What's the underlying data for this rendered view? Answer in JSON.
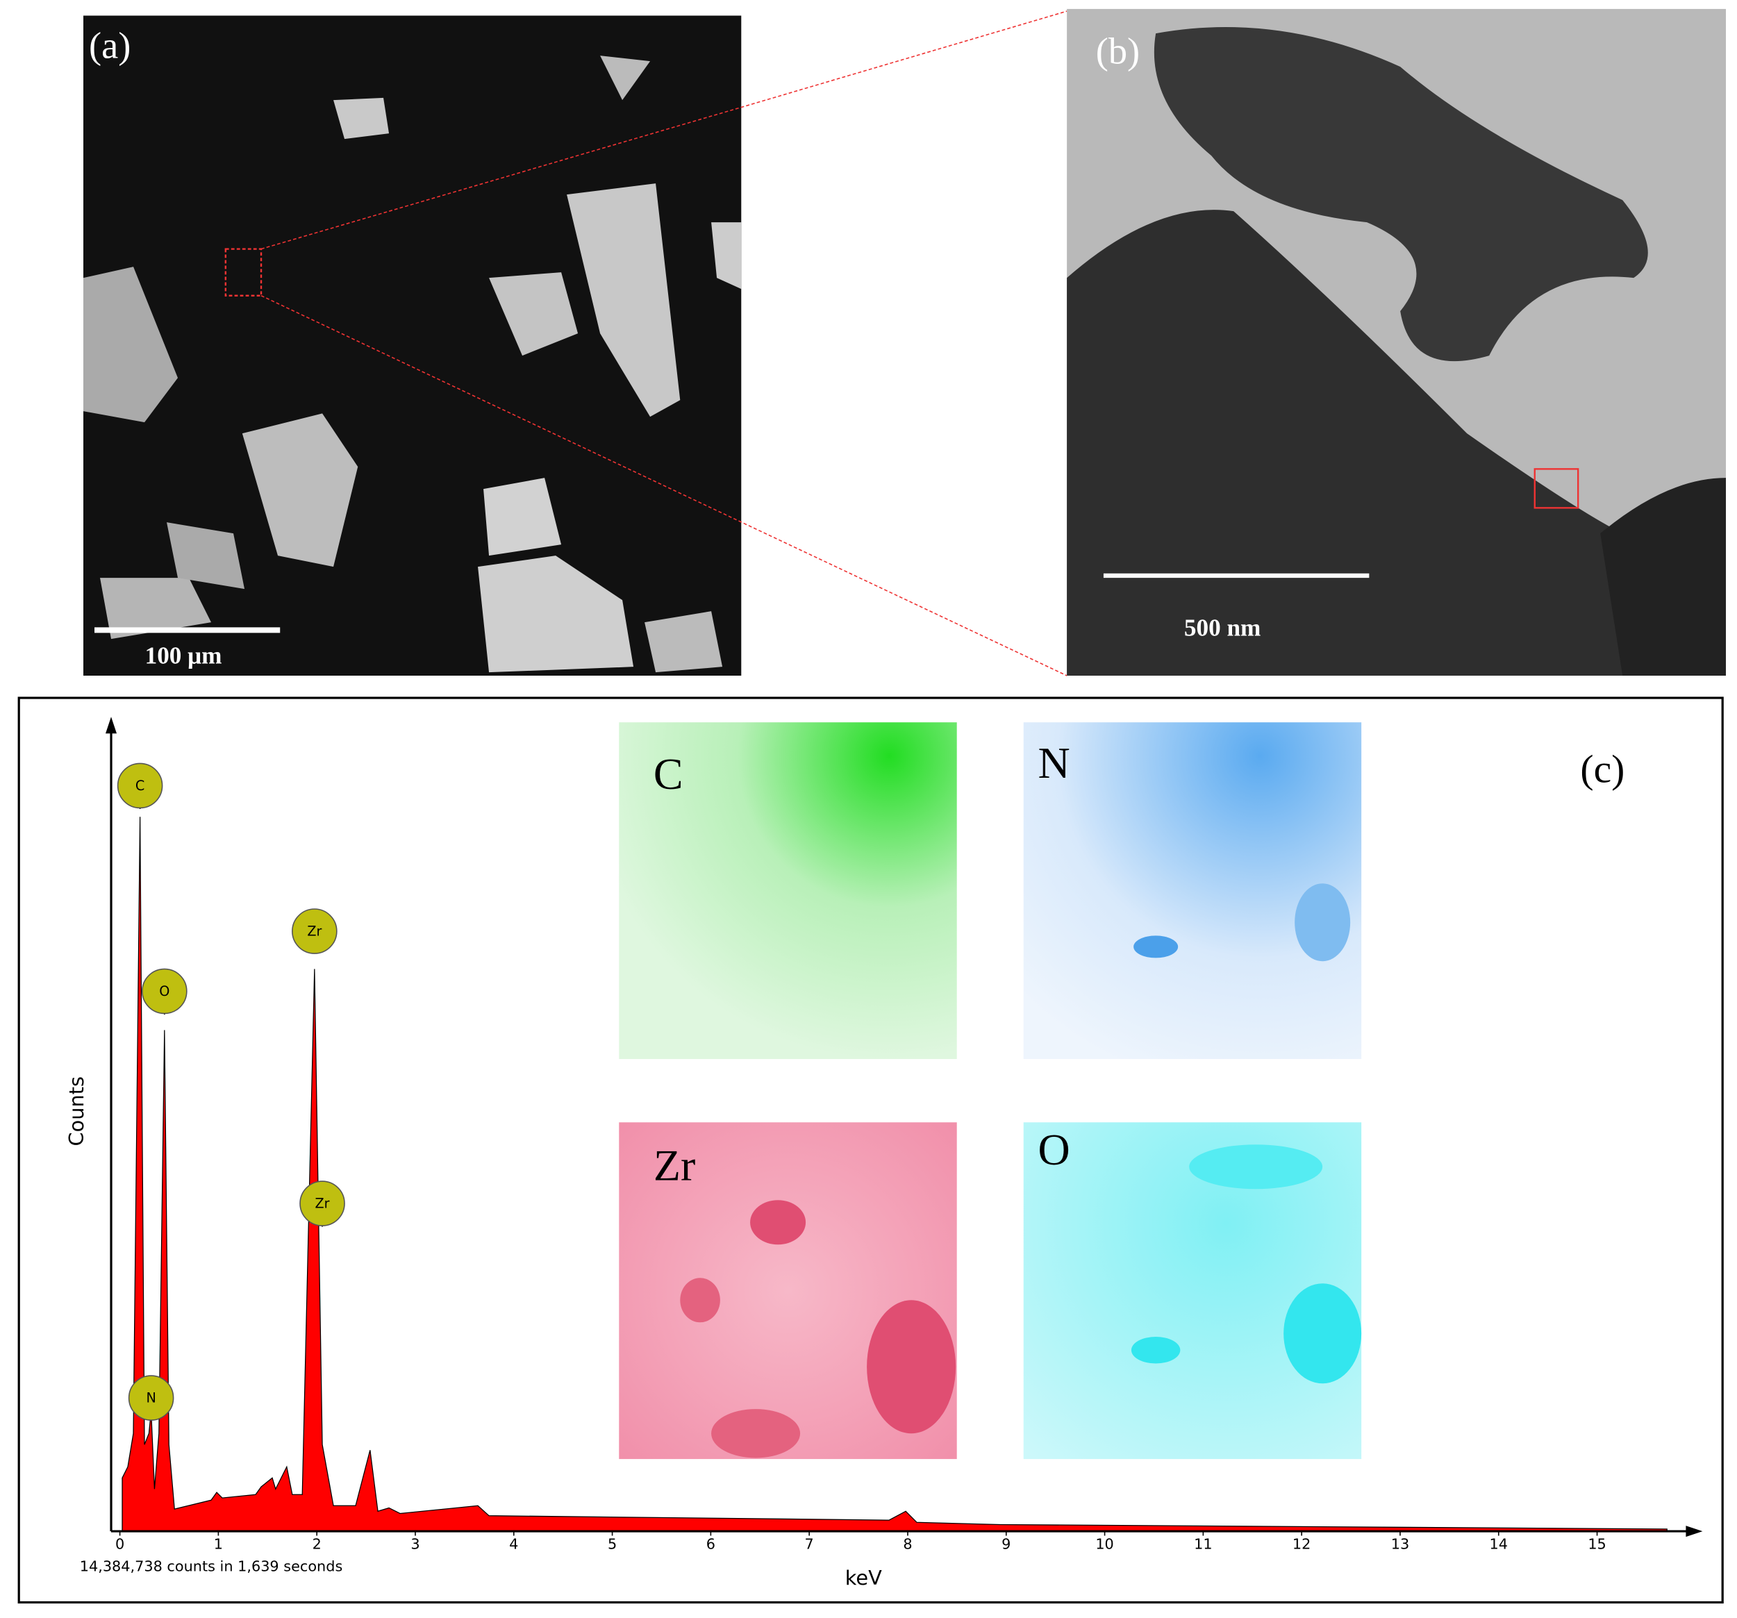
{
  "panels": {
    "a": {
      "label": "(a)",
      "scale_bar": "100 μm"
    },
    "b": {
      "label": "(b)",
      "scale_bar": "500 nm"
    },
    "c": {
      "label": "(c)",
      "maps": [
        "C",
        "N",
        "Zr",
        "O"
      ]
    }
  },
  "chart_data": {
    "type": "area",
    "x_label": "keV",
    "y_label": "Counts",
    "footnote": "14,384,738 counts in 1,639 seconds",
    "xlim": [
      -0.1,
      15.8
    ],
    "xticks": [
      0,
      1,
      2,
      3,
      4,
      5,
      6,
      7,
      8,
      9,
      10,
      11,
      12,
      13,
      14,
      15
    ],
    "annotations": [
      "C",
      "O",
      "Zr",
      "Zr",
      "N"
    ],
    "color": "#ff0000"
  }
}
